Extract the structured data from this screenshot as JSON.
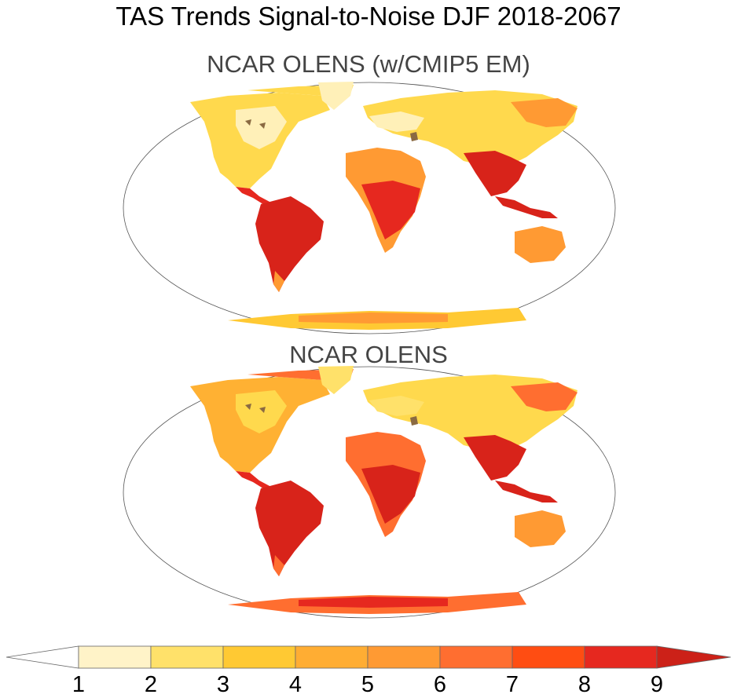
{
  "figure": {
    "title": "TAS Trends Signal-to-Noise DJF 2018-2067",
    "panels": [
      {
        "title": "NCAR OLENS (w/CMIP5 EM)"
      },
      {
        "title": "NCAR OLENS"
      }
    ]
  },
  "colorbar": {
    "levels": [
      "1",
      "2",
      "3",
      "4",
      "5",
      "6",
      "7",
      "8",
      "9"
    ],
    "colors": [
      "#ffffff",
      "#fff3c8",
      "#ffe16a",
      "#ffc933",
      "#ffad33",
      "#ff9a33",
      "#ff6e30",
      "#ff4d12",
      "#e6281f",
      "#cc2118"
    ]
  },
  "palette": {
    "ocean": "#ffffff",
    "lake": "#8a6a42",
    "outline": "#555555"
  }
}
